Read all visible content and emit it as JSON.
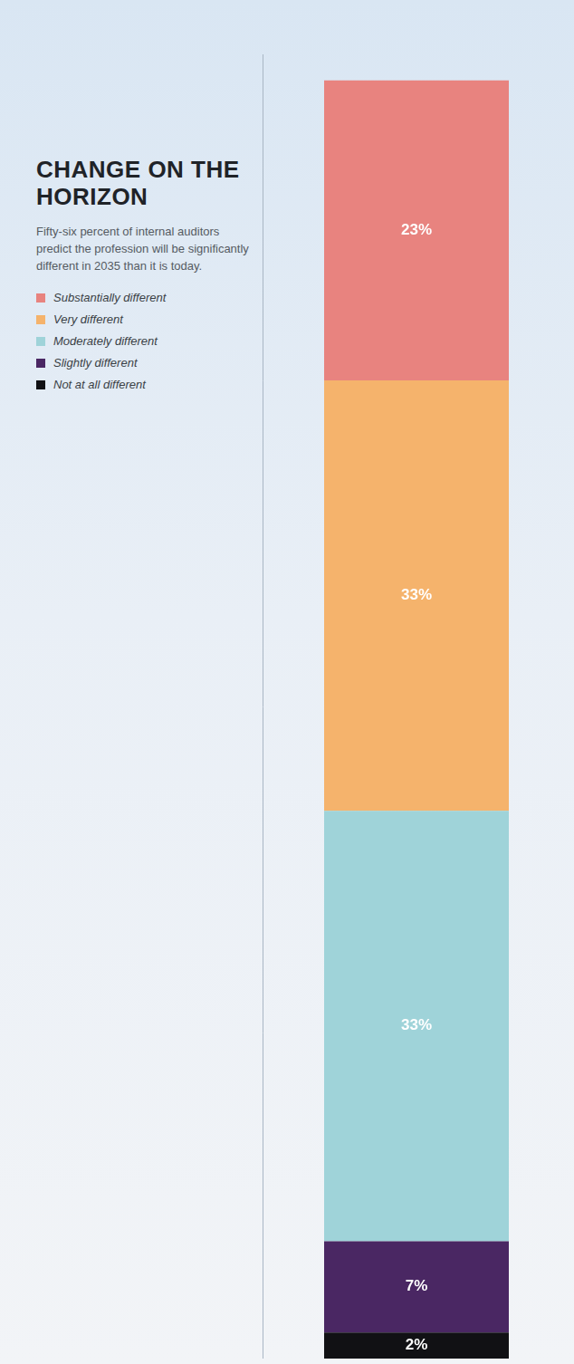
{
  "chart_data": {
    "type": "bar",
    "title": "CHANGE ON THE HORIZON",
    "subtitle": "Fifty-six percent of internal auditors predict the profession will be significantly different in 2035 than it is today.",
    "categories": [
      null
    ],
    "series": [
      {
        "name": "Substantially different",
        "color": "#e8837f",
        "values": [
          23
        ],
        "value_labels": [
          "23%"
        ]
      },
      {
        "name": "Very different",
        "color": "#f5b36c",
        "values": [
          33
        ],
        "value_labels": [
          "33%"
        ]
      },
      {
        "name": "Moderately different",
        "color": "#9fd3d9",
        "values": [
          33
        ],
        "value_labels": [
          "33%"
        ]
      },
      {
        "name": "Slightly different",
        "color": "#4a2763",
        "values": [
          7
        ],
        "value_labels": [
          "7%"
        ]
      },
      {
        "name": "Not at all different",
        "color": "#111114",
        "values": [
          2
        ],
        "value_labels": [
          "2%"
        ]
      }
    ],
    "ylim": [
      0,
      100
    ],
    "stacked": true,
    "data_labels": true,
    "legend": "upper left",
    "tick_labels": false,
    "grid": false
  }
}
